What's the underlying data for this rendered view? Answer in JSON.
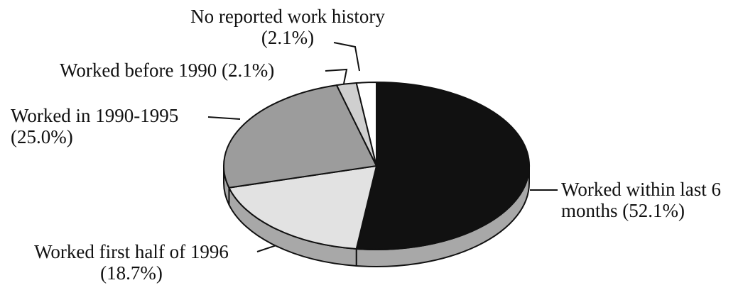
{
  "chart_data": {
    "type": "pie",
    "categories": [
      "Worked within last 6 months",
      "Worked first half of 1996",
      "Worked in 1990-1995",
      "Worked before 1990",
      "No reported work history"
    ],
    "values": [
      52.1,
      18.7,
      25.0,
      2.1,
      2.1
    ],
    "value_labels": [
      "(52.1%)",
      "(18.7%)",
      "(25.0%)",
      "(2.1%)",
      "(2.1%)"
    ],
    "colors": [
      "#111111",
      "#e2e2e2",
      "#9c9c9c",
      "#cfcfcf",
      "#ffffff"
    ],
    "side_color": "#a8a8a8",
    "three_d": true
  }
}
